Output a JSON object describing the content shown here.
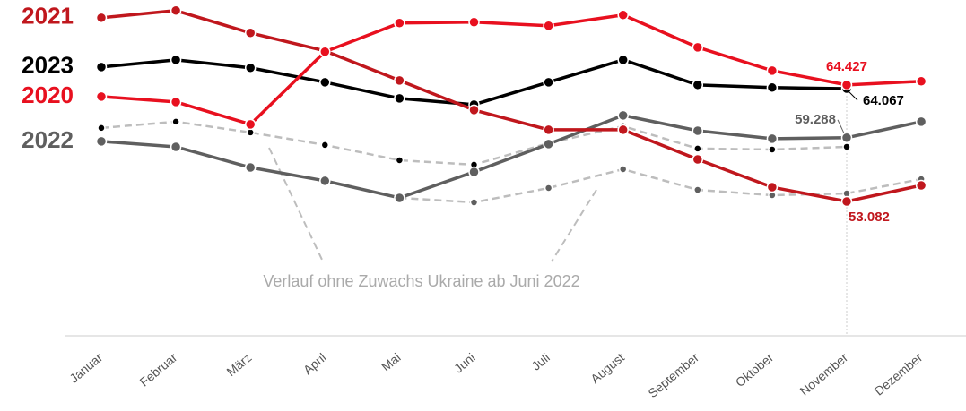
{
  "chart_data": {
    "type": "line",
    "categories": [
      "Januar",
      "Februar",
      "März",
      "April",
      "Mai",
      "Juni",
      "Juli",
      "August",
      "September",
      "Oktober",
      "November",
      "Dezember"
    ],
    "ylim": [
      40,
      72
    ],
    "annotation": "Verlauf ohne Zuwachs Ukraine ab Juni 2022",
    "series": [
      {
        "name": "2021",
        "color": "#c0171d",
        "line_style": "solid",
        "values": [
          70.97,
          71.67,
          69.49,
          67.74,
          64.86,
          61.98,
          60.06,
          60.06,
          57.18,
          54.47,
          53.082,
          54.65
        ],
        "value_labels": [
          null,
          null,
          null,
          null,
          null,
          null,
          null,
          null,
          null,
          null,
          "53.082",
          null
        ]
      },
      {
        "name": "2023",
        "color": "#000000",
        "line_style": "solid",
        "values": [
          66.17,
          66.87,
          66.09,
          64.69,
          63.12,
          62.51,
          64.69,
          66.87,
          64.43,
          64.17,
          64.067,
          null
        ],
        "value_labels": [
          null,
          null,
          null,
          null,
          null,
          null,
          null,
          null,
          null,
          null,
          "64.067",
          null
        ]
      },
      {
        "name": "2020",
        "color": "#e8101f",
        "line_style": "solid",
        "values": [
          63.29,
          62.77,
          60.59,
          67.66,
          70.45,
          70.54,
          70.19,
          71.24,
          68.09,
          65.82,
          64.427,
          64.78
        ],
        "value_labels": [
          null,
          null,
          null,
          null,
          null,
          null,
          null,
          null,
          null,
          null,
          "64.427",
          null
        ]
      },
      {
        "name": "2022",
        "color": "#5f5f5f",
        "line_style": "solid",
        "values": [
          58.93,
          58.4,
          56.39,
          55.09,
          53.43,
          55.96,
          58.67,
          61.46,
          59.97,
          59.19,
          59.288,
          60.85
        ],
        "value_labels": [
          null,
          null,
          null,
          null,
          null,
          null,
          null,
          null,
          null,
          null,
          "59.288",
          null
        ]
      },
      {
        "color": "#bdbdbd",
        "marker_color": "#000000",
        "line_style": "dashed",
        "values": [
          60.24,
          60.85,
          59.8,
          58.58,
          57.09,
          56.66,
          58.75,
          60.41,
          58.23,
          58.14,
          58.4,
          null
        ]
      },
      {
        "color": "#bdbdbd",
        "marker_color": "#5f5f5f",
        "line_style": "dashed",
        "values": [
          null,
          null,
          null,
          null,
          53.43,
          52.99,
          54.39,
          56.22,
          54.21,
          53.69,
          53.86,
          55.26
        ]
      }
    ]
  }
}
